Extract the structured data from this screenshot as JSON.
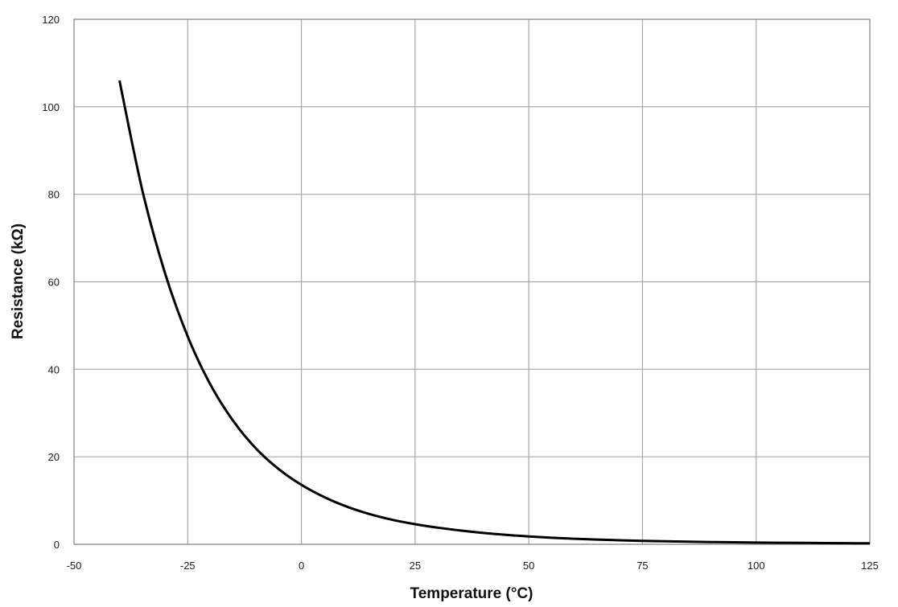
{
  "chart_data": {
    "type": "line",
    "title": "",
    "xlabel": "Temperature (°C)",
    "ylabel": "Resistance (kΩ)",
    "xlim": [
      -50,
      125
    ],
    "ylim": [
      0,
      120
    ],
    "x_ticks": [
      -50,
      -25,
      0,
      25,
      50,
      75,
      100,
      125
    ],
    "y_ticks": [
      0,
      20,
      40,
      60,
      80,
      100,
      120
    ],
    "grid": true,
    "legend": "none",
    "line_color": "#000000",
    "grid_color": "#a6a6a6",
    "series": [
      {
        "x": [
          -40,
          -35,
          -30,
          -25,
          -20,
          -15,
          -10,
          -5,
          0,
          5,
          10,
          15,
          20,
          25,
          30,
          35,
          40,
          45,
          50,
          55,
          60,
          65,
          70,
          75,
          80,
          85,
          90,
          95,
          100,
          105,
          110,
          115,
          120,
          125
        ],
        "values": [
          106,
          81,
          62,
          47.5,
          36.5,
          28.2,
          21.9,
          17.2,
          13.6,
          10.8,
          8.6,
          6.9,
          5.6,
          4.6,
          3.8,
          3.15,
          2.6,
          2.15,
          1.8,
          1.5,
          1.27,
          1.08,
          0.92,
          0.79,
          0.68,
          0.59,
          0.51,
          0.45,
          0.39,
          0.35,
          0.31,
          0.28,
          0.25,
          0.22
        ]
      }
    ]
  }
}
